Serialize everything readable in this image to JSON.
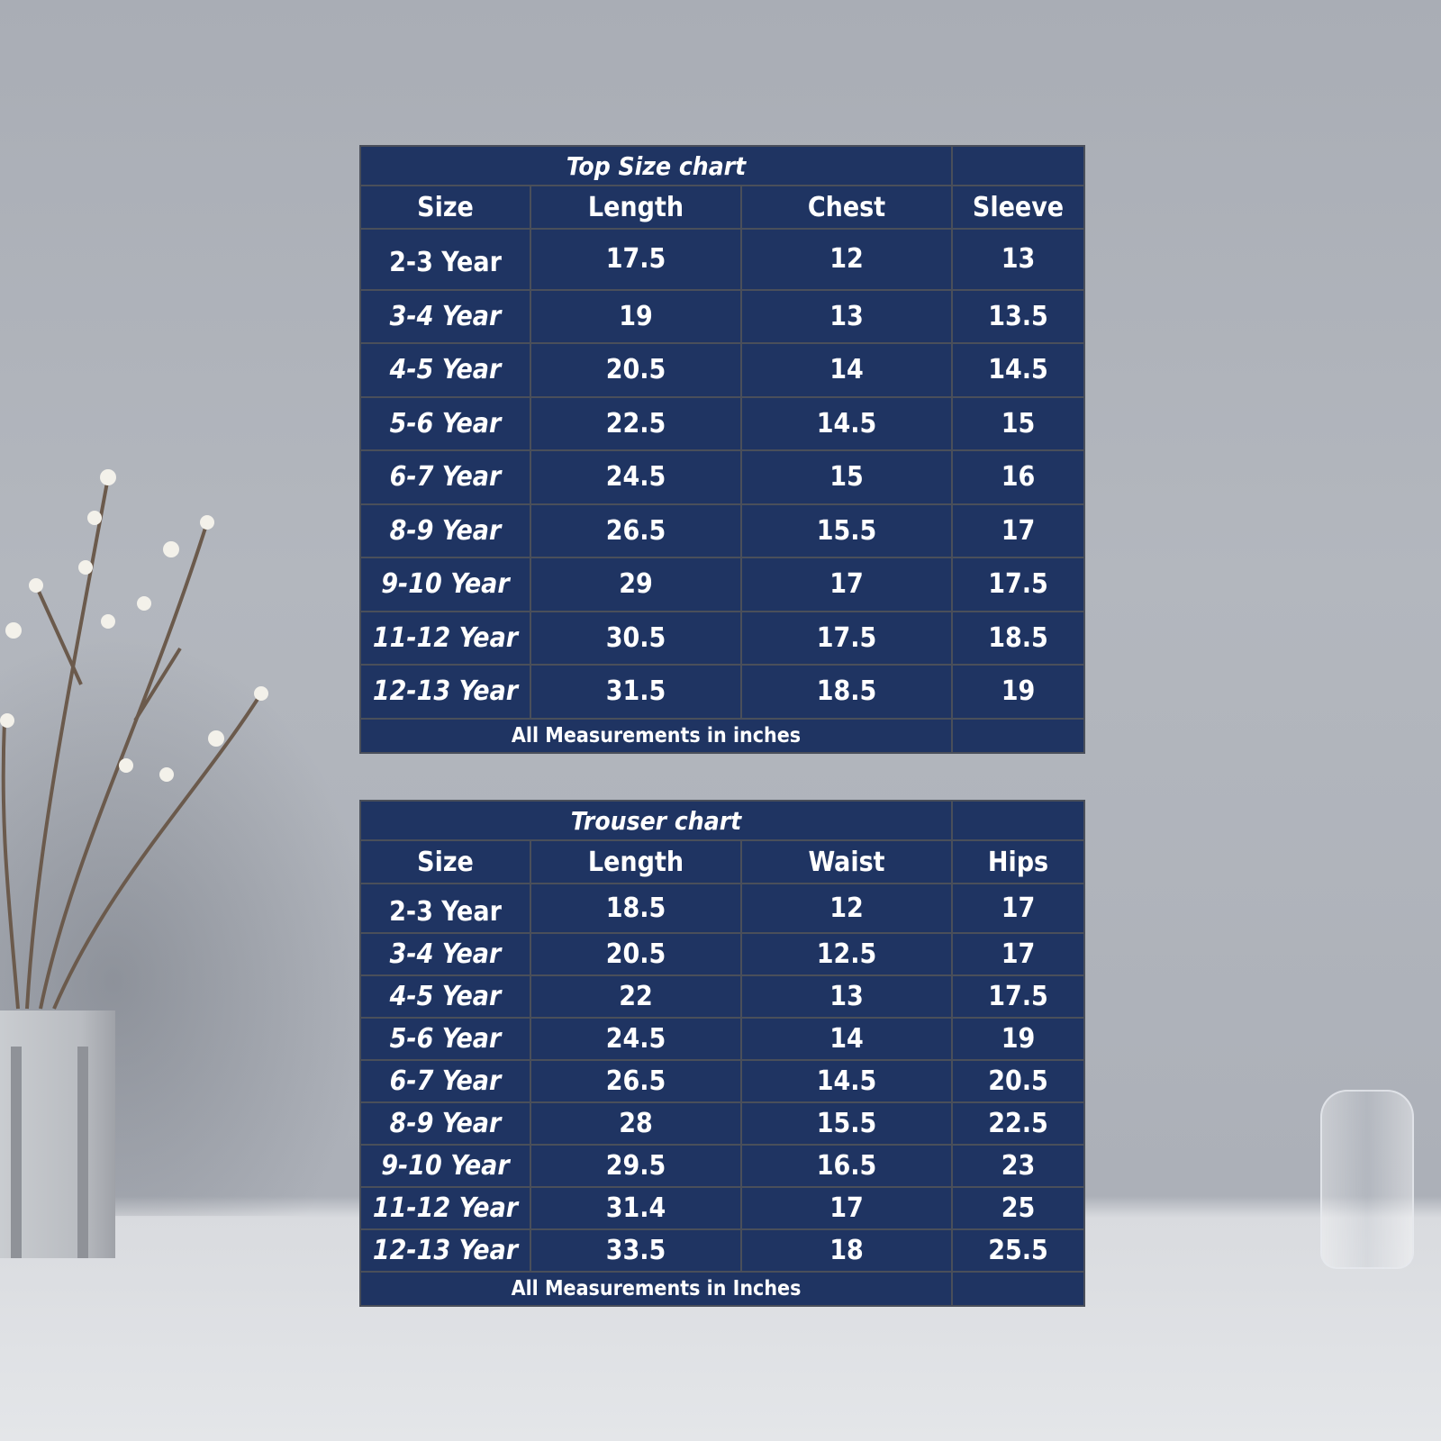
{
  "chart_data": [
    {
      "type": "table",
      "title": "Top Size chart",
      "columns": [
        "Size",
        "Length",
        "Chest",
        "Sleeve"
      ],
      "rows": [
        [
          "2-3 Year",
          "17.5",
          "12",
          "13"
        ],
        [
          "3-4 Year",
          "19",
          "13",
          "13.5"
        ],
        [
          "4-5 Year",
          "20.5",
          "14",
          "14.5"
        ],
        [
          "5-6 Year",
          "22.5",
          "14.5",
          "15"
        ],
        [
          "6-7 Year",
          "24.5",
          "15",
          "16"
        ],
        [
          "8-9 Year",
          "26.5",
          "15.5",
          "17"
        ],
        [
          "9-10 Year",
          "29",
          "17",
          "17.5"
        ],
        [
          "11-12 Year",
          "30.5",
          "17.5",
          "18.5"
        ],
        [
          "12-13 Year",
          "31.5",
          "18.5",
          "19"
        ]
      ],
      "footer": "All Measurements in inches"
    },
    {
      "type": "table",
      "title": "Trouser chart",
      "columns": [
        "Size",
        "Length",
        "Waist",
        "Hips"
      ],
      "rows": [
        [
          "2-3 Year",
          "18.5",
          "12",
          "17"
        ],
        [
          "3-4 Year",
          "20.5",
          "12.5",
          "17"
        ],
        [
          "4-5 Year",
          "22",
          "13",
          "17.5"
        ],
        [
          "5-6 Year",
          "24.5",
          "14",
          "19"
        ],
        [
          "6-7 Year",
          "26.5",
          "14.5",
          "20.5"
        ],
        [
          "8-9 Year",
          "28",
          "15.5",
          "22.5"
        ],
        [
          "9-10 Year",
          "29.5",
          "16.5",
          "23"
        ],
        [
          "11-12 Year",
          "31.4",
          "17",
          "25"
        ],
        [
          "12-13 Year",
          "33.5",
          "18",
          "25.5"
        ]
      ],
      "footer": "All  Measurements in Inches"
    }
  ],
  "colors": {
    "table_bg": "#1f3462",
    "grid": "#4a4f5a",
    "text": "#ffffff"
  }
}
